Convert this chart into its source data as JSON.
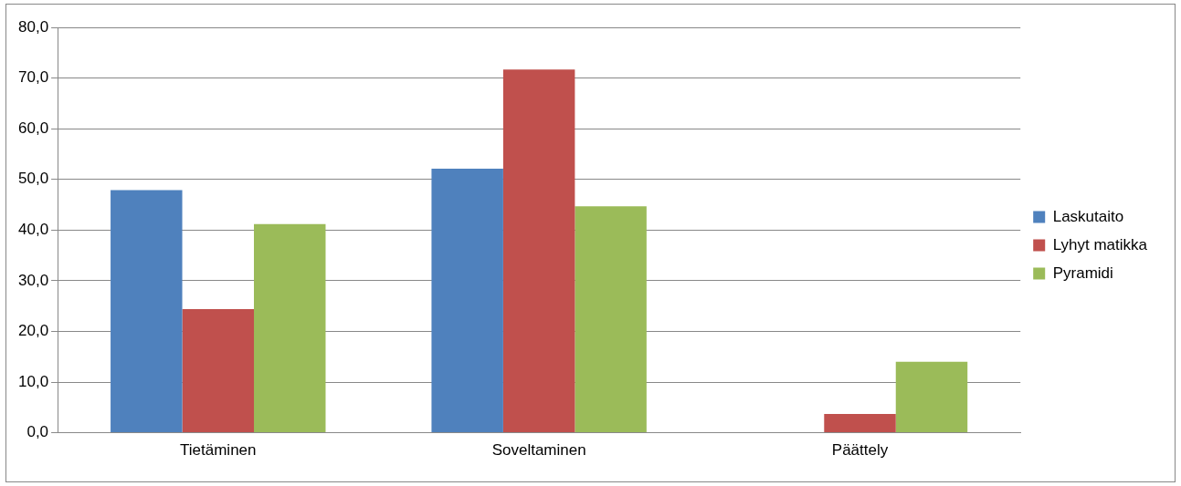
{
  "chart_data": {
    "type": "bar",
    "categories": [
      "Tietäminen",
      "Soveltaminen",
      "Päättely"
    ],
    "series": [
      {
        "name": "Laskutaito",
        "color": "#4f81bd",
        "values": [
          47.9,
          52.1,
          0
        ]
      },
      {
        "name": "Lyhyt matikka",
        "color": "#c0504d",
        "values": [
          24.4,
          71.7,
          3.7
        ]
      },
      {
        "name": "Pyramidi",
        "color": "#9bbb59",
        "values": [
          41.2,
          44.7,
          14.0
        ]
      }
    ],
    "ylim": [
      0,
      80
    ],
    "yticks": [
      {
        "value": 0,
        "label": "0,0"
      },
      {
        "value": 10,
        "label": "10,0"
      },
      {
        "value": 20,
        "label": "20,0"
      },
      {
        "value": 30,
        "label": "30,0"
      },
      {
        "value": 40,
        "label": "40,0"
      },
      {
        "value": 50,
        "label": "50,0"
      },
      {
        "value": 60,
        "label": "60,0"
      },
      {
        "value": 70,
        "label": "70,0"
      },
      {
        "value": 80,
        "label": "80,0"
      }
    ],
    "grid": "y",
    "legend": "right"
  }
}
